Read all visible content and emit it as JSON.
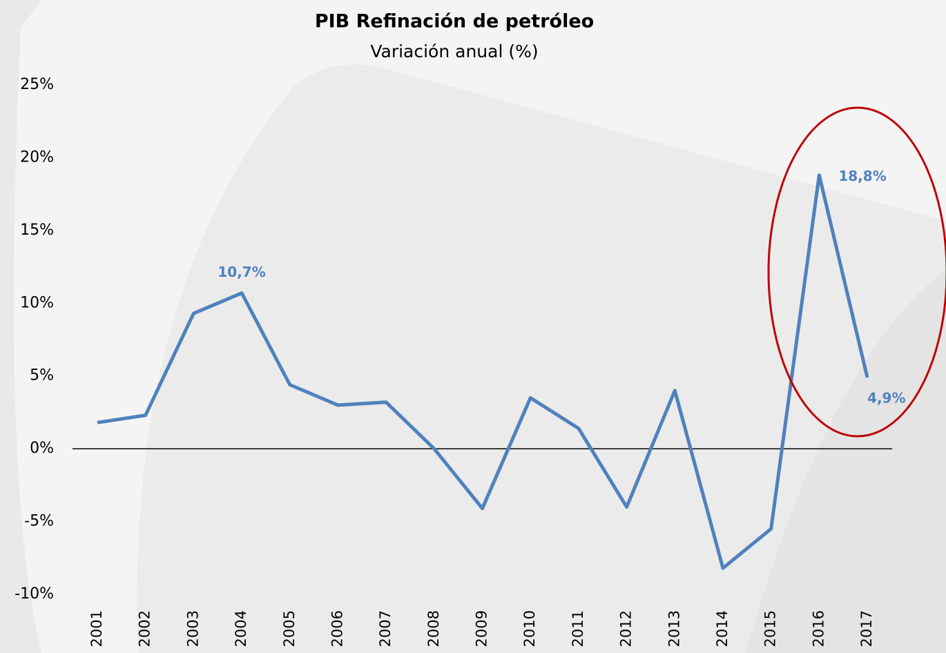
{
  "chart_data": {
    "type": "line",
    "title": "PIB Refinación de petróleo",
    "subtitle": "Variación anual (%)",
    "categories": [
      "2001",
      "2002",
      "2003",
      "2004",
      "2005",
      "2006",
      "2007",
      "2008",
      "2009",
      "2010",
      "2011",
      "2012",
      "2013",
      "2014",
      "2015",
      "2016",
      "2017"
    ],
    "series": [
      {
        "color": "#4f81bd",
        "values": [
          1.8,
          2.3,
          9.3,
          10.7,
          4.4,
          3.0,
          3.2,
          0.0,
          -4.1,
          3.5,
          1.4,
          -4.0,
          4.0,
          -8.2,
          -5.5,
          18.8,
          4.9
        ],
        "value_labels": [
          null,
          null,
          null,
          "10,7%",
          null,
          null,
          null,
          null,
          null,
          null,
          null,
          null,
          null,
          null,
          null,
          "18,8%",
          "4,9%"
        ]
      }
    ],
    "ylim": [
      -10,
      25
    ],
    "yticks": [
      {
        "value": -10,
        "label": "-10%"
      },
      {
        "value": -5,
        "label": "-5%"
      },
      {
        "value": 0,
        "label": "0%"
      },
      {
        "value": 5,
        "label": "5%"
      },
      {
        "value": 10,
        "label": "10%"
      },
      {
        "value": 15,
        "label": "15%"
      },
      {
        "value": 20,
        "label": "20%"
      },
      {
        "value": 25,
        "label": "25%"
      }
    ],
    "grid": false
  }
}
